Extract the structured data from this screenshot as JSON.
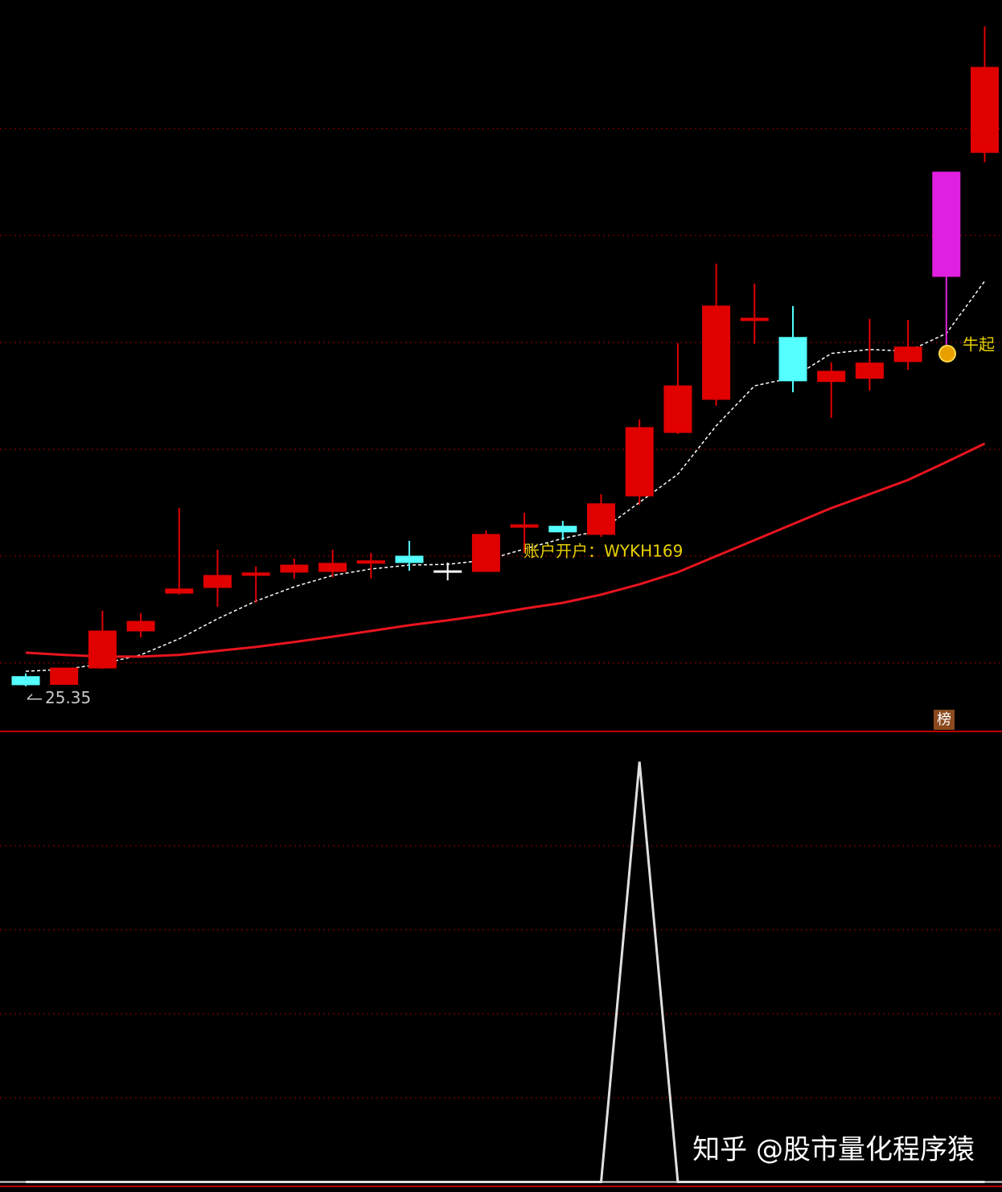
{
  "chart_data": [
    {
      "type": "candlestick",
      "categories": [
        null,
        null,
        null,
        null,
        null,
        null,
        null,
        null,
        null,
        null,
        null,
        null,
        null,
        null,
        null,
        null,
        null,
        null,
        null,
        null,
        null,
        null,
        null,
        null,
        null,
        null
      ],
      "open": [
        25.62,
        25.4,
        25.86,
        26.9,
        27.96,
        28.12,
        28.46,
        28.55,
        28.57,
        28.8,
        29.0,
        28.59,
        28.57,
        29.81,
        29.84,
        29.61,
        30.69,
        32.47,
        33.4,
        35.61,
        35.14,
        33.9,
        33.99,
        34.46,
        36.85,
        40.33
      ],
      "high": [
        25.71,
        25.86,
        27.47,
        27.4,
        30.35,
        29.18,
        28.71,
        28.93,
        29.18,
        29.09,
        29.43,
        28.82,
        29.72,
        30.22,
        29.99,
        30.74,
        32.84,
        34.98,
        37.21,
        36.65,
        36.02,
        34.44,
        35.66,
        35.63,
        39.78,
        43.87
      ],
      "low": [
        25.35,
        25.38,
        25.84,
        26.72,
        27.92,
        27.58,
        27.69,
        28.37,
        28.41,
        28.37,
        28.59,
        28.32,
        28.57,
        29.09,
        29.45,
        29.54,
        30.44,
        32.43,
        33.22,
        34.96,
        33.6,
        32.88,
        33.65,
        34.23,
        34.91,
        40.06
      ],
      "close": [
        25.39,
        25.86,
        26.9,
        27.17,
        28.08,
        28.46,
        28.53,
        28.75,
        28.8,
        28.87,
        28.82,
        28.59,
        29.61,
        29.88,
        29.68,
        30.47,
        32.61,
        33.78,
        36.02,
        35.68,
        33.92,
        34.19,
        34.42,
        34.87,
        39.78,
        42.72
      ],
      "up_color": "#e00000",
      "down_color": "#54ffff",
      "flat_color": "#ffffff",
      "highlight_index": 24,
      "highlight_color": "#e020e0",
      "series": [
        {
          "color": "#ffffff",
          "dashed": true,
          "values": [
            25.77,
            25.82,
            25.98,
            26.23,
            26.68,
            27.24,
            27.74,
            28.14,
            28.46,
            28.64,
            28.75,
            28.77,
            28.89,
            29.2,
            29.5,
            29.72,
            30.51,
            31.3,
            32.66,
            33.78,
            34.01,
            34.69,
            34.8,
            34.75,
            35.25,
            36.72
          ]
        },
        {
          "color": "#e8141e",
          "dashed": false,
          "values": [
            26.29,
            26.23,
            26.18,
            26.18,
            26.23,
            26.34,
            26.45,
            26.59,
            26.74,
            26.9,
            27.06,
            27.2,
            27.35,
            27.53,
            27.69,
            27.92,
            28.21,
            28.55,
            29.0,
            29.45,
            29.9,
            30.35,
            30.74,
            31.14,
            31.64,
            32.16
          ]
        }
      ],
      "min_label": 25.35,
      "annotations": [
        "账户开户：WYKH169",
        "牛起",
        "榜"
      ],
      "ylim": [
        24.08,
        44.61
      ],
      "yticks": [
        26,
        29,
        32,
        35,
        38,
        41
      ],
      "grid": true
    },
    {
      "type": "line",
      "categories": [
        null,
        null,
        null,
        null,
        null,
        null,
        null,
        null,
        null,
        null,
        null,
        null,
        null,
        null,
        null,
        null,
        null,
        null,
        null,
        null,
        null,
        null,
        null,
        null,
        null,
        null
      ],
      "series": [
        {
          "color": "#e0e0e0",
          "values": [
            0,
            0,
            0,
            0,
            0,
            0,
            0,
            0,
            0,
            0,
            0,
            0,
            0,
            0,
            0,
            0,
            5,
            0,
            0,
            0,
            0,
            0,
            0,
            0,
            0,
            0
          ]
        }
      ],
      "ylim": [
        -0.12,
        5.36
      ],
      "yticks": [
        1,
        2,
        3,
        4
      ],
      "grid": true
    }
  ],
  "watermark": "知乎 @股市量化程序猿"
}
